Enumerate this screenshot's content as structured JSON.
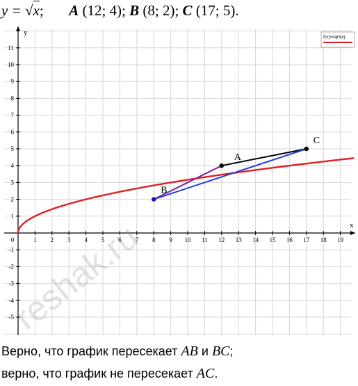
{
  "header": {
    "function_lhs": "y = ",
    "function_rad": "x",
    "function_end": ";",
    "points": [
      {
        "name": "A",
        "coords": "(12; 4);"
      },
      {
        "name": "B",
        "coords": "(8; 2);"
      },
      {
        "name": "C",
        "coords": "(17; 5)."
      }
    ]
  },
  "chart_data": {
    "type": "line",
    "title": "",
    "xlabel": "x",
    "ylabel": "y",
    "xlim": [
      -1,
      20
    ],
    "ylim": [
      -6,
      12
    ],
    "grid": true,
    "x_ticks": [
      1,
      2,
      3,
      4,
      5,
      6,
      7,
      8,
      9,
      10,
      11,
      12,
      13,
      14,
      15,
      16,
      17,
      18,
      19
    ],
    "y_ticks": [
      -5,
      -4,
      -3,
      -2,
      -1,
      1,
      2,
      3,
      4,
      5,
      6,
      7,
      8,
      9,
      10,
      11
    ],
    "origin_label": "0",
    "legend": {
      "label": "f(x)=sqrt(x)",
      "placement": "top-right",
      "color": "#e02020"
    },
    "series": [
      {
        "name": "f(x)=sqrt(x)",
        "function": "sqrt",
        "x_range": [
          0,
          20
        ],
        "color": "#e02020"
      }
    ],
    "points": [
      {
        "name": "A",
        "x": 12,
        "y": 4
      },
      {
        "name": "B",
        "x": 8,
        "y": 2
      },
      {
        "name": "C",
        "x": 17,
        "y": 5
      }
    ],
    "segments": [
      {
        "from": "A",
        "to": "C",
        "color": "#000000"
      },
      {
        "from": "B",
        "to": "A",
        "color": "#7b1fa2"
      },
      {
        "from": "B",
        "to": "C",
        "color": "#1f3fd6"
      }
    ],
    "point_color": "#1a1aa0"
  },
  "footer": {
    "line1_text": "Верно, что график пересекает ",
    "line1_seg1": "AB",
    "line1_and": " и ",
    "line1_seg2": "BC",
    "line1_end": ";",
    "line2_text": "верно, что график не пересекает ",
    "line2_seg": "AC",
    "line2_end": "."
  },
  "watermark": "reshak.ru"
}
